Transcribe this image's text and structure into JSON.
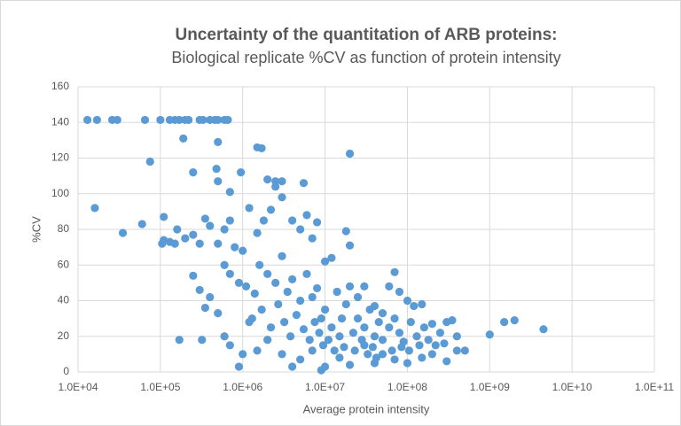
{
  "chart_data": {
    "type": "scatter",
    "title": "Uncertainty of the quantitation of ARB proteins:",
    "subtitle": "Biological replicate %CV as function of protein intensity",
    "x_label": "Average protein intensity",
    "y_label": "%CV",
    "x_scale": "log",
    "grid": true,
    "xlim": [
      10000,
      100000000000
    ],
    "xticks": [
      {
        "value": 10000,
        "label": "1.0E+04"
      },
      {
        "value": 100000,
        "label": "1.0E+05"
      },
      {
        "value": 1000000,
        "label": "1.0E+06"
      },
      {
        "value": 10000000,
        "label": "1.0E+07"
      },
      {
        "value": 100000000,
        "label": "1.0E+08"
      },
      {
        "value": 1000000000,
        "label": "1.0E+09"
      },
      {
        "value": 10000000000,
        "label": "1.0E+10"
      },
      {
        "value": 100000000000,
        "label": "1.0E+11"
      }
    ],
    "ylim": [
      0,
      160
    ],
    "yticks": [
      0,
      20,
      40,
      60,
      80,
      100,
      120,
      140,
      160
    ],
    "series": [
      {
        "color": "#5b9bd5",
        "x": [
          13000,
          17000,
          26000,
          30000,
          65000,
          100000,
          130000,
          150000,
          170000,
          200000,
          220000,
          300000,
          330000,
          400000,
          460000,
          500000,
          600000,
          660000,
          190000,
          75000,
          16000,
          35000,
          60000,
          110000,
          105000,
          160000,
          170000,
          320000,
          250000,
          480000,
          500000,
          500000,
          700000,
          950000,
          1500000,
          1700000,
          2500000,
          3000000,
          5500000,
          20000000,
          250000,
          300000,
          350000,
          400000,
          500000,
          600000,
          700000,
          900000,
          1000000,
          1200000,
          1500000,
          2000000,
          3000000,
          4000000,
          5000000,
          7000000,
          9000000,
          10000000,
          15000000,
          20000000,
          30000000,
          40000000,
          50000000,
          70000000,
          100000000,
          150000000,
          200000000,
          300000000,
          400000000,
          500000000,
          4500000000,
          2000000000,
          1500000000,
          1000000000,
          400000000,
          300000000,
          200000000,
          150000000,
          120000000,
          100000000,
          80000000,
          70000000,
          60000000,
          50000000,
          40000000,
          30000000,
          25000000,
          20000000,
          18000000,
          20000000,
          12000000,
          10000000,
          8000000,
          7000000,
          6000000,
          5000000,
          4000000,
          3000000,
          2500000,
          2000000,
          2200000,
          1800000,
          1500000,
          1200000,
          1000000,
          800000,
          700000,
          600000,
          500000,
          400000,
          300000,
          350000,
          200000,
          250000,
          110000,
          130000,
          150000,
          600000,
          700000,
          900000,
          1100000,
          1400000,
          1600000,
          2000000,
          2500000,
          3000000,
          3500000,
          4000000,
          5000000,
          6000000,
          7000000,
          8000000,
          9000000,
          10000000,
          12000000,
          14000000,
          16000000,
          18000000,
          22000000,
          25000000,
          30000000,
          35000000,
          40000000,
          45000000,
          50000000,
          60000000,
          70000000,
          80000000,
          90000000,
          110000000,
          130000000,
          160000000,
          180000000,
          220000000,
          250000000,
          350000000,
          1300000,
          1700000,
          2200000,
          2700000,
          3200000,
          3800000,
          4500000,
          5500000,
          6500000,
          7500000,
          8500000,
          9500000,
          11000000,
          13000000,
          15000000,
          17000000,
          23000000,
          28000000,
          33000000,
          38000000,
          42000000,
          65000000,
          85000000,
          105000000,
          140000000,
          280000000
        ],
        "y": [
          141.4,
          141.4,
          141.4,
          141.4,
          141.4,
          141.4,
          141.4,
          141.4,
          141.4,
          141.4,
          141.4,
          141.4,
          141.4,
          141.4,
          141.4,
          141.4,
          141.4,
          141.4,
          131,
          118,
          92,
          78,
          83,
          87,
          72,
          80,
          18,
          18,
          112,
          114,
          129,
          107,
          101,
          112,
          126,
          125.5,
          107,
          107,
          106,
          122.5,
          54,
          46,
          36,
          42,
          33,
          20,
          15,
          3,
          10,
          28,
          12,
          18,
          10,
          3,
          7,
          12,
          1,
          3,
          8,
          4,
          15,
          5,
          10,
          7,
          5,
          8,
          10,
          6,
          12,
          12,
          24,
          29,
          28,
          21,
          20,
          28,
          27,
          38,
          37,
          40,
          45,
          56,
          48,
          33,
          37,
          48,
          42,
          48,
          79,
          71,
          64,
          62,
          84,
          75,
          88,
          80,
          85,
          98,
          104,
          108,
          91,
          85,
          78,
          92,
          68,
          70,
          85,
          80,
          72,
          82,
          72,
          86,
          75,
          77,
          74,
          73,
          72,
          60,
          55,
          50,
          48,
          44,
          60,
          55,
          50,
          65,
          45,
          52,
          40,
          55,
          42,
          47,
          30,
          35,
          25,
          45,
          30,
          38,
          22,
          30,
          25,
          35,
          20,
          28,
          18,
          25,
          30,
          22,
          17,
          28,
          20,
          25,
          18,
          15,
          22,
          29,
          30,
          35,
          25,
          38,
          28,
          20,
          32,
          24,
          18,
          28,
          22,
          15,
          18,
          12,
          20,
          14,
          12,
          18,
          10,
          14,
          8,
          12,
          14,
          12,
          15,
          16
        ]
      }
    ]
  }
}
